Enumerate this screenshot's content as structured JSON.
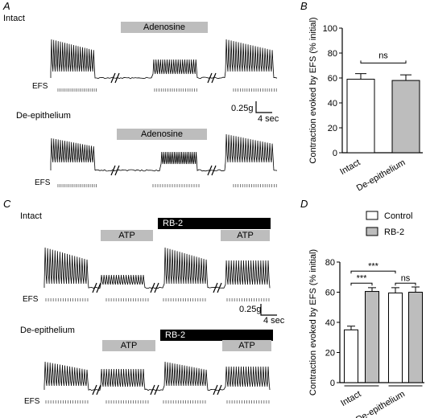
{
  "panels": {
    "A": {
      "label": "A",
      "rows": [
        {
          "condition": "Intact",
          "drug": "Adenosine",
          "stim": "EFS"
        },
        {
          "condition": "De-epithelium",
          "drug": "Adenosine",
          "stim": "EFS"
        }
      ],
      "scale": {
        "force": "0.25g",
        "time": "4 sec"
      }
    },
    "C": {
      "label": "C",
      "rows": [
        {
          "condition": "Intact",
          "drug": "ATP",
          "drug2": "ATP",
          "blocker": "RB-2",
          "stim": "EFS"
        },
        {
          "condition": "De-epithelium",
          "drug": "ATP",
          "drug2": "ATP",
          "blocker": "RB-2",
          "stim": "EFS"
        }
      ],
      "scale": {
        "force": "0.25g",
        "time": "4 sec"
      }
    }
  },
  "chart_data": [
    {
      "panel": "B",
      "type": "bar",
      "categories": [
        "Intact",
        "De-epithelium"
      ],
      "values": [
        59,
        58
      ],
      "errors": [
        4.5,
        4.5
      ],
      "colors": [
        "#ffffff",
        "#bdbdbd"
      ],
      "ylabel": "Contraction evoked by EFS (% initial)",
      "ylim": [
        0,
        100
      ],
      "yticks": [
        0,
        20,
        40,
        60,
        80,
        100
      ],
      "significance": [
        {
          "from": 0,
          "to": 1,
          "label": "ns"
        }
      ]
    },
    {
      "panel": "D",
      "type": "bar",
      "categories": [
        "Intact",
        "De-epithelium"
      ],
      "series": [
        {
          "name": "Control",
          "color": "#ffffff",
          "values": [
            35,
            59.5
          ],
          "errors": [
            2.5,
            3.5
          ]
        },
        {
          "name": "RB-2",
          "color": "#bdbdbd",
          "values": [
            60.5,
            60
          ],
          "errors": [
            2.5,
            3.5
          ]
        }
      ],
      "ylabel": "Contraction evoked by EFS (% initial)",
      "ylim": [
        0,
        80
      ],
      "yticks": [
        0,
        20,
        40,
        60,
        80
      ],
      "legend": "top-right",
      "significance": [
        {
          "label": "***",
          "between": "Control Intact vs Control De-epithelium"
        },
        {
          "label": "***",
          "between": "Intact Control vs Intact RB-2"
        },
        {
          "label": "ns",
          "between": "De-epithelium Control vs De-epithelium RB-2"
        }
      ]
    }
  ]
}
